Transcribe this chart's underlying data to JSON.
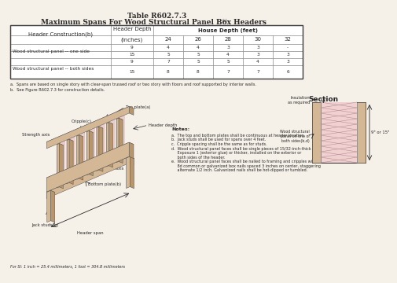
{
  "title1": "Table R602.7.3",
  "title2": "Maximum Spans For Wood Structural Panel Box Headers(a)",
  "bg_color": "#f5f0e8",
  "table": {
    "col1_header": "Header Construction(b)",
    "col2_header": "Header Depth\n(inches)",
    "col3_header": "House Depth (feet)",
    "house_depths": [
      "24",
      "26",
      "28",
      "30",
      "32"
    ],
    "rows": [
      {
        "label": "Wood structural panel -- one side",
        "depths": [
          9,
          15
        ],
        "values": [
          [
            "4",
            "4",
            "3",
            "3",
            "-"
          ],
          [
            "5",
            "5",
            "4",
            "3",
            "3"
          ]
        ]
      },
      {
        "label": "Wood structural panel -- both sides",
        "depths": [
          9,
          15
        ],
        "values": [
          [
            "7",
            "5",
            "5",
            "4",
            "3"
          ],
          [
            "8",
            "8",
            "7",
            "7",
            "6"
          ]
        ]
      }
    ]
  },
  "footnotes": [
    "a.  Spans are based on single story with clear-span trussed roof or two story with floors and roof supported by interior walls.",
    "b.  See Figure R602.7.3 for construction details."
  ],
  "section_label": "Section",
  "notes_header": "Notes:",
  "notes": [
    "a.  The top and bottom plates shall be continuous at header location.",
    "b.  Jack studs shall be used for spans over 4 feet.",
    "c.  Cripple spacing shall be the same as for studs.",
    "d.  Wood structural panel faces shall be single pieces of 15/32-inch-thick Exposure 1 (exterior glue) or thicker, installed on the exterior or both sides of the header.",
    "e.  Wood structural panel faces shall be nailed to framing and cripples with 8d common or galvanized box nails spaced 3 inches on center, staggering alternate 1/2 inch. Galvanized nails shall be hot-dipped or tumbled."
  ],
  "si_note": "For SI: 1 inch = 25.4 millimeters, 1 foot = 304.8 millimeters",
  "diagram_labels": {
    "top_plate": "Top plate(a)",
    "header_depth": "Header depth",
    "strength_axis1": "Strength axis",
    "cripple": "Cripple(c)",
    "strength_axis2": "Strength axis",
    "bottom_plate": "Bottom plate(b)",
    "jack_studs": "Jack studs(b)",
    "header_span": "Header span",
    "insulation": "Insulation\nas required",
    "wood_panel": "Wood structural\npanel on one or\nboth sides(b,d)",
    "dim_label": "9\" or 15\""
  },
  "wood_color": "#d4b896",
  "wood_dark": "#b8956a",
  "wood_light": "#e8d4b0",
  "pink_fill": "#e8c8c8",
  "text_color": "#2a2a2a"
}
